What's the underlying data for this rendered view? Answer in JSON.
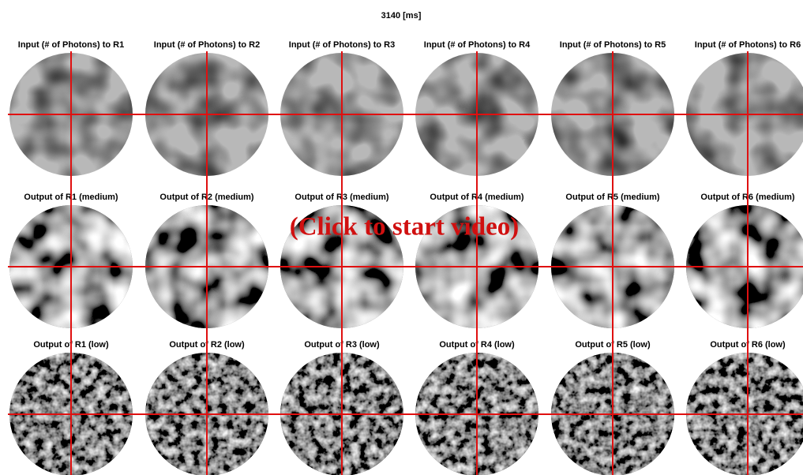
{
  "title": "3140 [ms]",
  "overlay": "(Click to start video)",
  "panels": [
    [
      "Input (# of Photons) to R1",
      "Input (# of Photons) to R2",
      "Input (# of Photons) to R3",
      "Input (# of Photons) to R4",
      "Input (# of Photons) to R5",
      "Input (# of Photons) to R6"
    ],
    [
      "Output of R1 (medium)",
      "Output of R2 (medium)",
      "Output of R3 (medium)",
      "Output of R4 (medium)",
      "Output of R5 (medium)",
      "Output of R6 (medium)"
    ],
    [
      "Output of R1 (low)",
      "Output of R2 (low)",
      "Output of R3 (low)",
      "Output of R4 (low)",
      "Output of R5 (low)",
      "Output of R6 (low)"
    ]
  ]
}
